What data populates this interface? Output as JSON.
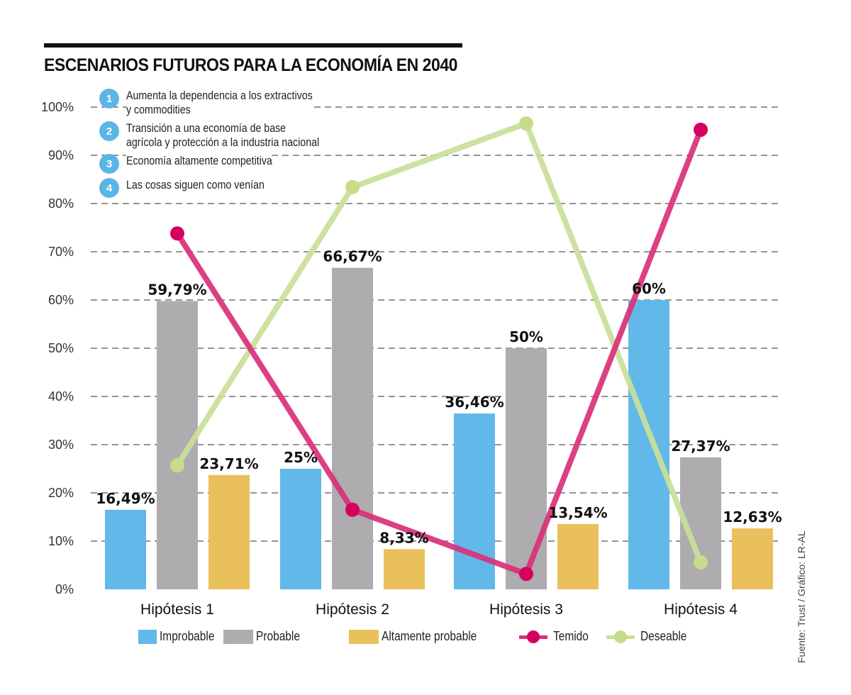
{
  "title": "ESCENARIOS FUTUROS PARA LA ECONOMÍA EN 2040",
  "notes": [
    {
      "num": "1",
      "text": "Aumenta la dependencia a los extractivos\ny commodities"
    },
    {
      "num": "2",
      "text": " Transición a una economía de base\nagrícola y protección a la industria nacional"
    },
    {
      "num": "3",
      "text": "Economía altamente competitiva"
    },
    {
      "num": "4",
      "text": "Las cosas siguen como venían"
    }
  ],
  "source": "Fuente: Trust / Gráfico: LR-AL",
  "colors": {
    "improbable": "#62b8e8",
    "probable": "#aeacaf",
    "altamente": "#e9c05c",
    "temido": "#d9307a",
    "temido_dot": "#d6005f",
    "deseable": "#c9df98",
    "deseable_dot": "#c6dc8a",
    "badge": "#5bb6e6"
  },
  "chart_data": {
    "type": "bar",
    "title": "ESCENARIOS FUTUROS PARA LA ECONOMÍA EN 2040",
    "xlabel": "",
    "ylabel": "",
    "ylim": [
      0,
      100
    ],
    "yticks": [
      0,
      10,
      20,
      30,
      40,
      50,
      60,
      70,
      80,
      90,
      100
    ],
    "ytick_labels": [
      "0%",
      "10%",
      "20%",
      "30%",
      "40%",
      "50%",
      "60%",
      "70%",
      "80%",
      "90%",
      "100%"
    ],
    "grid": "horizontal-dashed",
    "categories": [
      "Hipótesis 1",
      "Hipótesis 2",
      "Hipótesis 3",
      "Hipótesis 4"
    ],
    "series": [
      {
        "name": "Improbable",
        "kind": "bar",
        "values": [
          16.49,
          25,
          36.46,
          60
        ],
        "labels": [
          "16,49%",
          "25%",
          "36,46%",
          "60%"
        ]
      },
      {
        "name": "Probable",
        "kind": "bar",
        "values": [
          59.79,
          66.67,
          50,
          27.37
        ],
        "labels": [
          "59,79%",
          "66,67%",
          "50%",
          "27,37%"
        ]
      },
      {
        "name": "Altamente probable",
        "kind": "bar",
        "values": [
          23.71,
          8.33,
          13.54,
          12.63
        ],
        "labels": [
          "23,71%",
          "8,33%",
          "13,54%",
          "12,63%"
        ]
      },
      {
        "name": "Temido",
        "kind": "line",
        "values": [
          73.8,
          16.5,
          3.2,
          95.3
        ]
      },
      {
        "name": "Deseable",
        "kind": "line",
        "values": [
          25.7,
          83.4,
          96.6,
          5.6
        ]
      }
    ],
    "legend": "bottom"
  }
}
